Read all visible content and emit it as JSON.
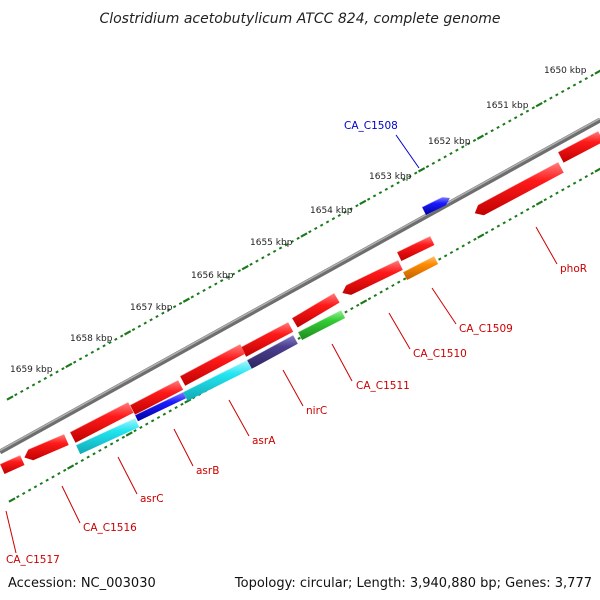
{
  "title": "Clostridium acetobutylicum ATCC 824, complete genome",
  "footer": {
    "accession": "Accession: NC_003030",
    "topology": "Topology: circular; Length: 3,940,880 bp; Genes: 3,777"
  },
  "colors": {
    "red": "#ff1a1a",
    "blue": "#1a1aff",
    "cyan": "#22e5f0",
    "purple": "#4a3f8f",
    "green": "#33cc33",
    "orange": "#ff8c00",
    "backbone": "#7f7f7f",
    "ruler": "#1a7a1a",
    "label_red": "#cc0000",
    "label_blue": "#0000cc"
  },
  "kbp_labels": [
    "1650 kbp",
    "1651 kbp",
    "1652 kbp",
    "1653 kbp",
    "1654 kbp",
    "1655 kbp",
    "1656 kbp",
    "1657 kbp",
    "1658 kbp",
    "1659 kbp"
  ],
  "gene_labels": [
    "CA_C1508",
    "phoR",
    "CA_C1509",
    "CA_C1510",
    "CA_C1511",
    "nirC",
    "asrA",
    "asrB",
    "asrC",
    "CA_C1516",
    "CA_C1517"
  ]
}
